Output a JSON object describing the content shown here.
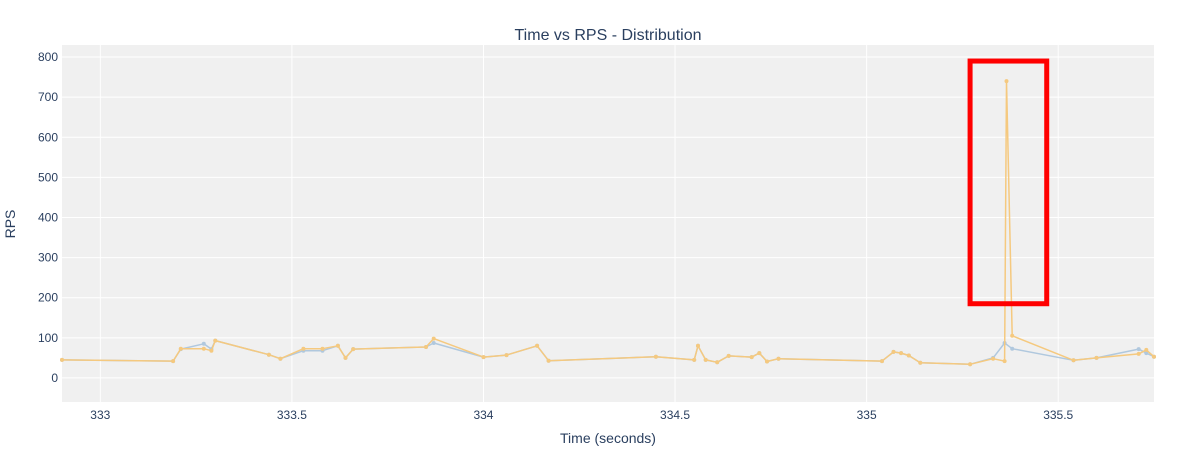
{
  "chart_data": {
    "type": "line",
    "title": "Time vs RPS - Distribution",
    "xlabel": "Time (seconds)",
    "ylabel": "RPS",
    "xlim": [
      332.9,
      335.75
    ],
    "ylim": [
      -60,
      830
    ],
    "x_ticks": [
      "333",
      "333.5",
      "334",
      "334.5",
      "335",
      "335.5"
    ],
    "y_ticks": [
      "0",
      "100",
      "200",
      "300",
      "400",
      "500",
      "600",
      "700",
      "800"
    ],
    "grid": true,
    "plot_background": "#f0f0f0",
    "series": [
      {
        "color": "#b0c8de",
        "x": [
          332.9,
          333.19,
          333.21,
          333.27,
          333.29,
          333.3,
          333.44,
          333.47,
          333.53,
          333.58,
          333.62,
          333.64,
          333.66,
          333.85,
          333.87,
          334.0,
          334.06,
          334.14,
          334.17,
          334.45,
          334.55,
          334.56,
          334.58,
          334.61,
          334.64,
          334.7,
          334.72,
          334.74,
          334.77,
          335.04,
          335.07,
          335.09,
          335.11,
          335.14,
          335.27,
          335.33,
          335.36,
          335.38,
          335.54,
          335.6,
          335.71,
          335.73,
          335.75
        ],
        "y": [
          45,
          42,
          72,
          85,
          72,
          93,
          58,
          48,
          68,
          68,
          80,
          50,
          72,
          77,
          87,
          52,
          57,
          80,
          43,
          53,
          45,
          80,
          45,
          39,
          55,
          52,
          62,
          41,
          48,
          42,
          65,
          62,
          56,
          38,
          34,
          50,
          87,
          73,
          44,
          50,
          72,
          62,
          53
        ]
      },
      {
        "color": "#f5c97f",
        "x": [
          332.9,
          333.19,
          333.21,
          333.27,
          333.29,
          333.3,
          333.44,
          333.47,
          333.53,
          333.58,
          333.62,
          333.64,
          333.66,
          333.85,
          333.87,
          334.0,
          334.06,
          334.14,
          334.17,
          334.45,
          334.55,
          334.56,
          334.58,
          334.61,
          334.64,
          334.7,
          334.72,
          334.74,
          334.77,
          335.04,
          335.07,
          335.09,
          335.11,
          335.14,
          335.27,
          335.33,
          335.36,
          335.365,
          335.38,
          335.54,
          335.6,
          335.71,
          335.73,
          335.75
        ],
        "y": [
          45,
          42,
          73,
          73,
          68,
          93,
          58,
          48,
          73,
          73,
          80,
          50,
          72,
          77,
          98,
          52,
          57,
          80,
          43,
          53,
          45,
          80,
          45,
          39,
          55,
          52,
          62,
          41,
          48,
          42,
          65,
          62,
          56,
          38,
          34,
          48,
          42,
          740,
          105,
          44,
          50,
          60,
          70,
          53
        ]
      }
    ],
    "annotation": {
      "shape": "rectangle",
      "color": "#ff0000",
      "x_range": [
        335.27,
        335.47
      ],
      "y_range": [
        185,
        790
      ]
    }
  }
}
